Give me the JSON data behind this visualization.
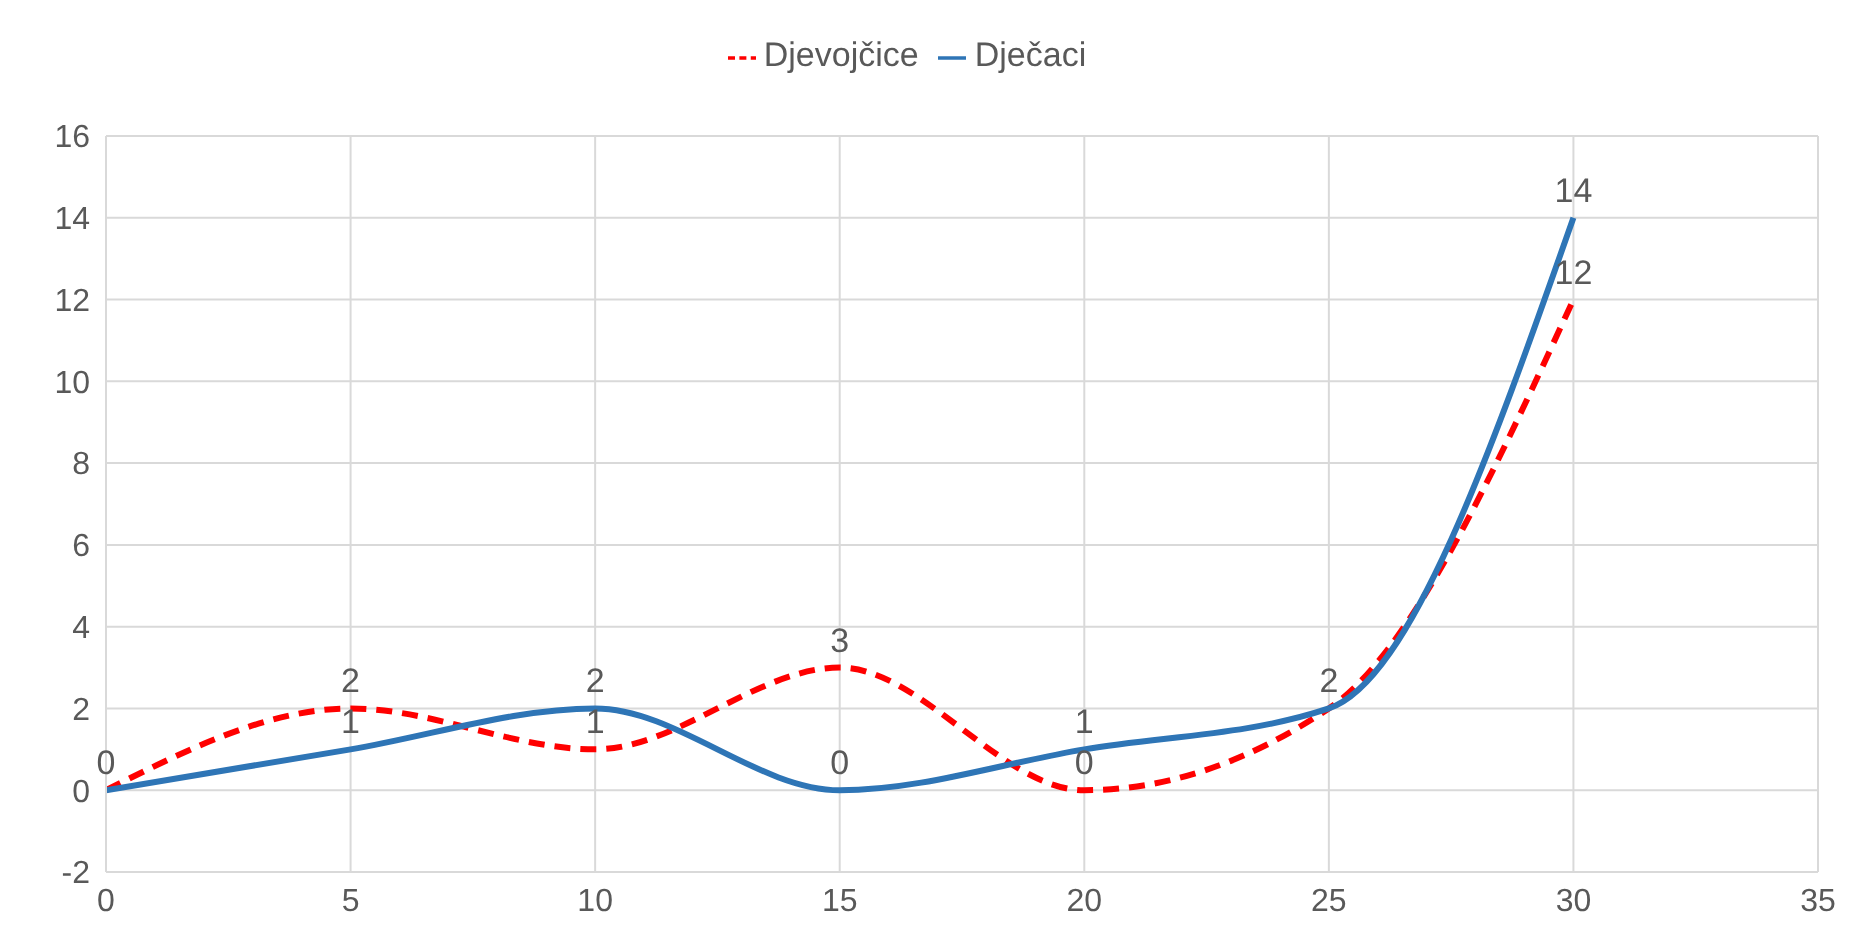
{
  "chart_data": {
    "type": "line",
    "x": [
      0,
      5,
      10,
      15,
      20,
      25,
      30
    ],
    "series": [
      {
        "name": "Djevojčice",
        "color": "#ff0000",
        "line_style": "dashed",
        "values": [
          0,
          2,
          1,
          3,
          0,
          2,
          12
        ],
        "value_labels": [
          "0",
          "2",
          "1",
          "3",
          "0",
          "2",
          "12"
        ]
      },
      {
        "name": "Dječaci",
        "color": "#2e75b6",
        "line_style": "solid",
        "values": [
          0,
          1,
          2,
          0,
          1,
          2,
          14
        ],
        "value_labels": [
          null,
          "1",
          "2",
          "0",
          "1",
          null,
          "14"
        ]
      }
    ],
    "xlim": [
      0,
      35
    ],
    "xticks": [
      0,
      5,
      10,
      15,
      20,
      25,
      30,
      35
    ],
    "ylim": [
      -2,
      16
    ],
    "yticks": [
      -2,
      0,
      2,
      4,
      6,
      8,
      10,
      12,
      14,
      16
    ],
    "grid": true,
    "legend": "top",
    "marker": "none"
  }
}
